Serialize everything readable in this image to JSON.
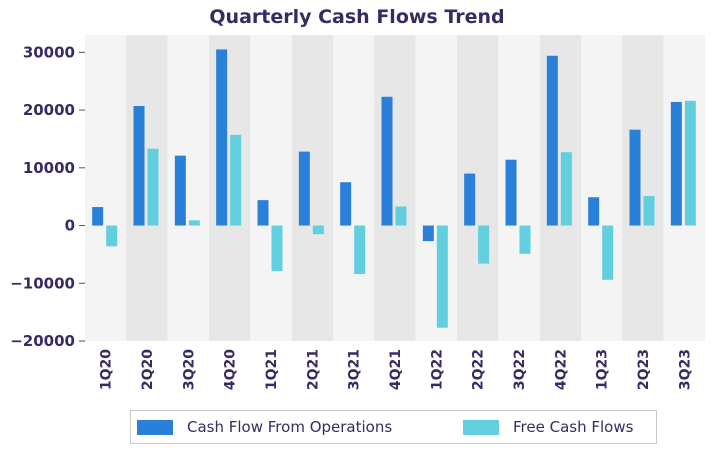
{
  "chart_data": {
    "type": "bar",
    "title": "Quarterly Cash Flows Trend",
    "xlabel": "",
    "ylabel": "",
    "categories": [
      "1Q20",
      "2Q20",
      "3Q20",
      "4Q20",
      "1Q21",
      "2Q21",
      "3Q21",
      "4Q21",
      "1Q22",
      "2Q22",
      "3Q22",
      "4Q22",
      "1Q23",
      "2Q23",
      "3Q23"
    ],
    "series": [
      {
        "name": "Cash Flow From Operations",
        "color": "#2a7fd8",
        "values": [
          3200,
          20700,
          12100,
          30500,
          4400,
          12800,
          7500,
          22300,
          -2700,
          9000,
          11400,
          29400,
          4900,
          16600,
          21400
        ]
      },
      {
        "name": "Free Cash Flows",
        "color": "#62cfdf",
        "values": [
          -3600,
          13300,
          900,
          15700,
          -7900,
          -1500,
          -8400,
          3300,
          -17700,
          -6600,
          -4900,
          12700,
          -9400,
          5100,
          21600
        ]
      }
    ],
    "ylim": [
      -20000,
      33000
    ],
    "yticks": [
      -20000,
      -10000,
      0,
      10000,
      20000,
      30000
    ],
    "ytick_labels": [
      "−20000",
      "−10000",
      "0",
      "10000",
      "20000",
      "30000"
    ],
    "grid": false,
    "legend_position": "bottom"
  },
  "colors": {
    "band_light": "#f4f4f4",
    "band_dark": "#e7e7e7",
    "tick_text": "#3a2a63"
  }
}
